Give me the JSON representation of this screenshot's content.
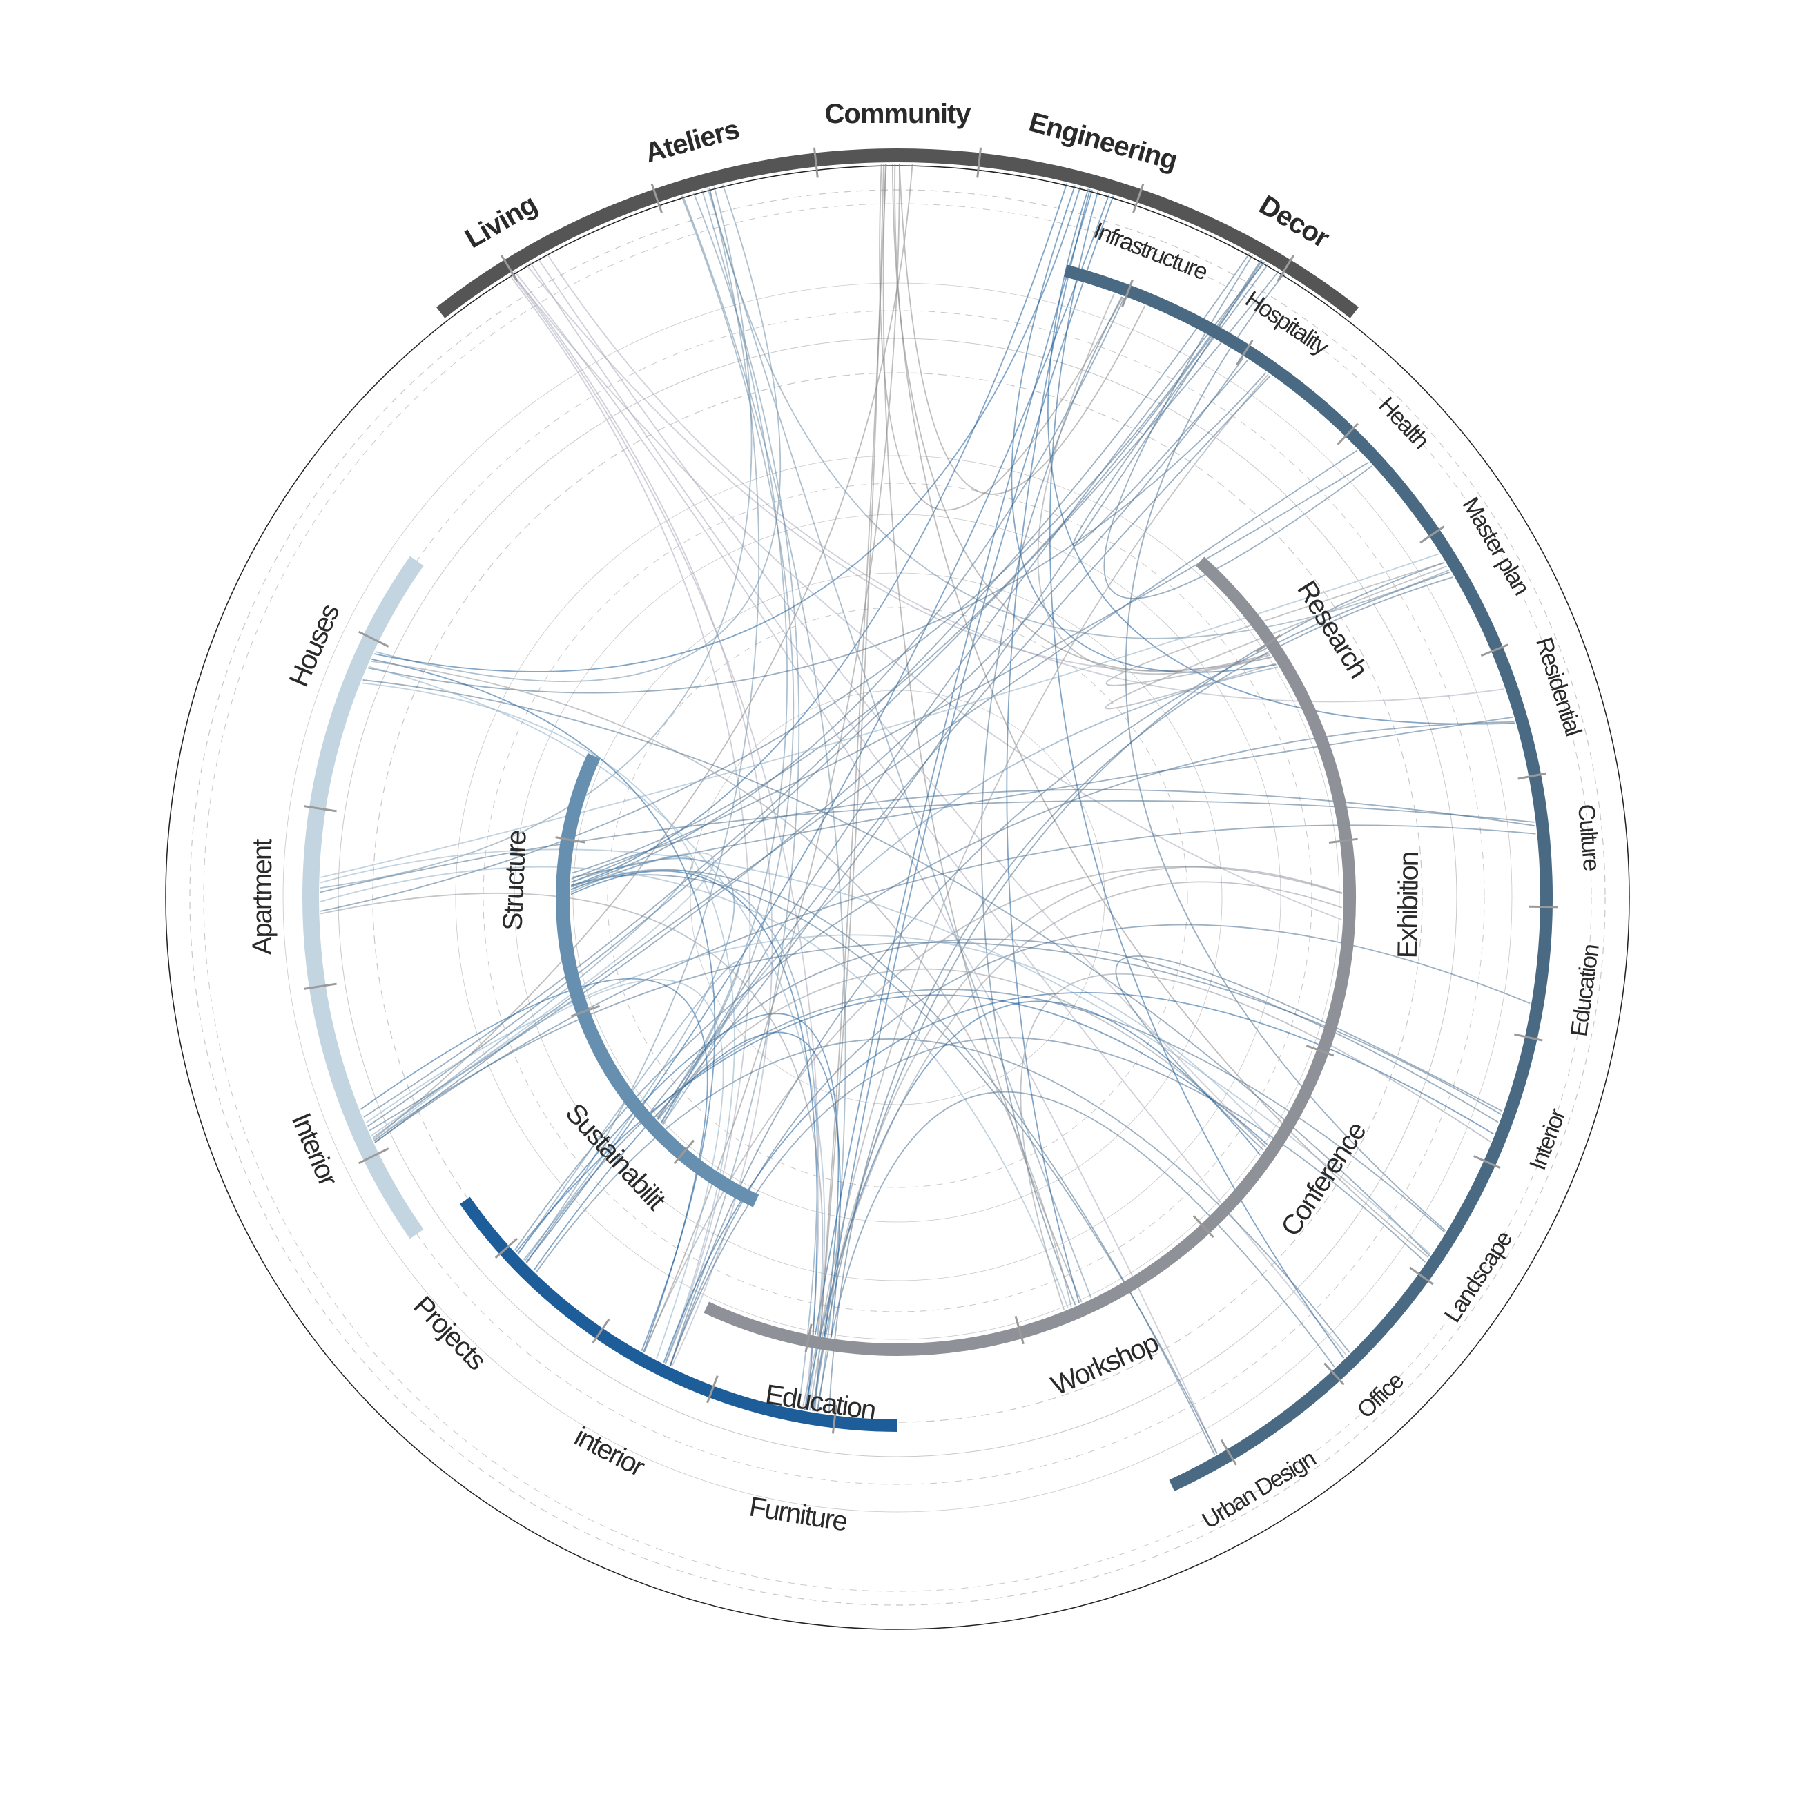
{
  "diagram": {
    "type": "radial-chord-network",
    "colors": {
      "background": "#ffffff",
      "guide": "#9a9a9a",
      "label": "#2a2a2a",
      "tick": "#9a9a9a"
    },
    "rings": [
      {
        "id": "top",
        "color": "#555555",
        "start": -38,
        "end": 38,
        "labels": [
          "Living",
          "Ateliers",
          "Community",
          "Engineering",
          "Decor"
        ]
      },
      {
        "id": "right",
        "color": "#4a6a84",
        "start": 15,
        "end": 155,
        "labels": [
          "Infrastructure",
          "Hospitality",
          "Health",
          "Master plan",
          "Residential",
          "Culture",
          "Education",
          "Interior",
          "Landscape",
          "Office",
          "Urban Design"
        ]
      },
      {
        "id": "left",
        "color": "#c4d5e2",
        "start": 235,
        "end": 305,
        "labels": [
          "Interior",
          "Apartment",
          "Houses"
        ]
      },
      {
        "id": "bottom",
        "color": "#1d5d99",
        "start": 180,
        "end": 235,
        "labels": [
          "Furniture",
          "interior",
          "Projects"
        ]
      },
      {
        "id": "inner-right",
        "color": "#8e9298",
        "start": 42,
        "end": 205,
        "labels": [
          "Research",
          "Exhibition",
          "Conference",
          "Workshop",
          "Education"
        ]
      },
      {
        "id": "inner-left",
        "color": "#6790b0",
        "start": 205,
        "end": 295,
        "labels": [
          "Sustainabilit",
          "Structure"
        ]
      }
    ]
  }
}
